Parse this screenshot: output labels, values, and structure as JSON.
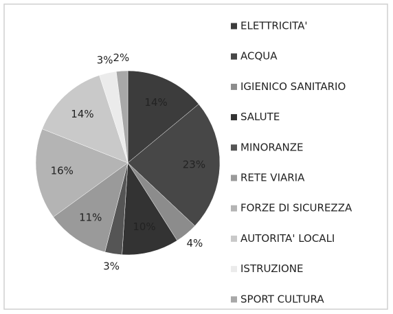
{
  "chart_data": {
    "type": "pie",
    "categories": [
      "ELETTRICITA'",
      "ACQUA",
      "IGIENICO SANITARIO",
      "SALUTE",
      "MINORANZE",
      "RETE VIARIA",
      "FORZE DI SICUREZZA",
      "AUTORITA' LOCALI",
      "ISTRUZIONE",
      "SPORT CULTURA"
    ],
    "values": [
      14,
      23,
      4,
      10,
      3,
      11,
      16,
      14,
      3,
      2
    ],
    "value_labels": [
      "14%",
      "23%",
      "4%",
      "10%",
      "3%",
      "11%",
      "16%",
      "14%",
      "3%",
      "2%"
    ],
    "colors": [
      "#3c3c3c",
      "#474747",
      "#8c8c8c",
      "#333333",
      "#555555",
      "#9a9a9a",
      "#b4b4b4",
      "#c9c9c9",
      "#ebebeb",
      "#a8a8a8"
    ],
    "legend": "right"
  }
}
